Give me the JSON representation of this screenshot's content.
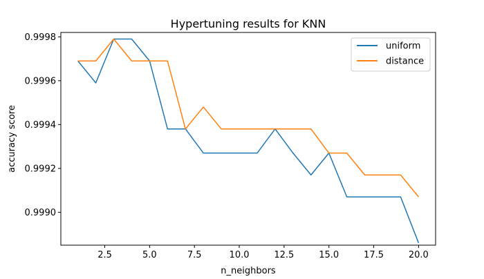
{
  "chart_data": {
    "type": "line",
    "title": "Hypertuning results for KNN",
    "xlabel": "n_neighbors",
    "ylabel": "accuracy score",
    "x": [
      1,
      2,
      3,
      4,
      5,
      6,
      7,
      8,
      9,
      10,
      11,
      12,
      13,
      14,
      15,
      16,
      17,
      18,
      19,
      20
    ],
    "xlim": [
      0.05,
      20.95
    ],
    "ylim": [
      0.99885,
      0.99982
    ],
    "xticks": [
      2.5,
      5.0,
      7.5,
      10.0,
      12.5,
      15.0,
      17.5,
      20.0
    ],
    "xtick_labels": [
      "2.5",
      "5.0",
      "7.5",
      "10.0",
      "12.5",
      "15.0",
      "17.5",
      "20.0"
    ],
    "yticks": [
      0.999,
      0.9992,
      0.9994,
      0.9996,
      0.9998
    ],
    "ytick_labels": [
      "0.9990",
      "0.9992",
      "0.9994",
      "0.9996",
      "0.9998"
    ],
    "grid": false,
    "legend_position": "top-right",
    "series": [
      {
        "name": "uniform",
        "color": "#1f77b4",
        "values": [
          0.99969,
          0.99959,
          0.99979,
          0.99979,
          0.99969,
          0.99938,
          0.99938,
          0.99927,
          0.99927,
          0.99927,
          0.99927,
          0.99938,
          0.99927,
          0.99917,
          0.99927,
          0.99907,
          0.99907,
          0.99907,
          0.99907,
          0.99886
        ]
      },
      {
        "name": "distance",
        "color": "#ff7f0e",
        "values": [
          0.99969,
          0.99969,
          0.99979,
          0.99969,
          0.99969,
          0.99969,
          0.99938,
          0.99948,
          0.99938,
          0.99938,
          0.99938,
          0.99938,
          0.99938,
          0.99938,
          0.99927,
          0.99927,
          0.99917,
          0.99917,
          0.99917,
          0.99907
        ]
      }
    ]
  }
}
